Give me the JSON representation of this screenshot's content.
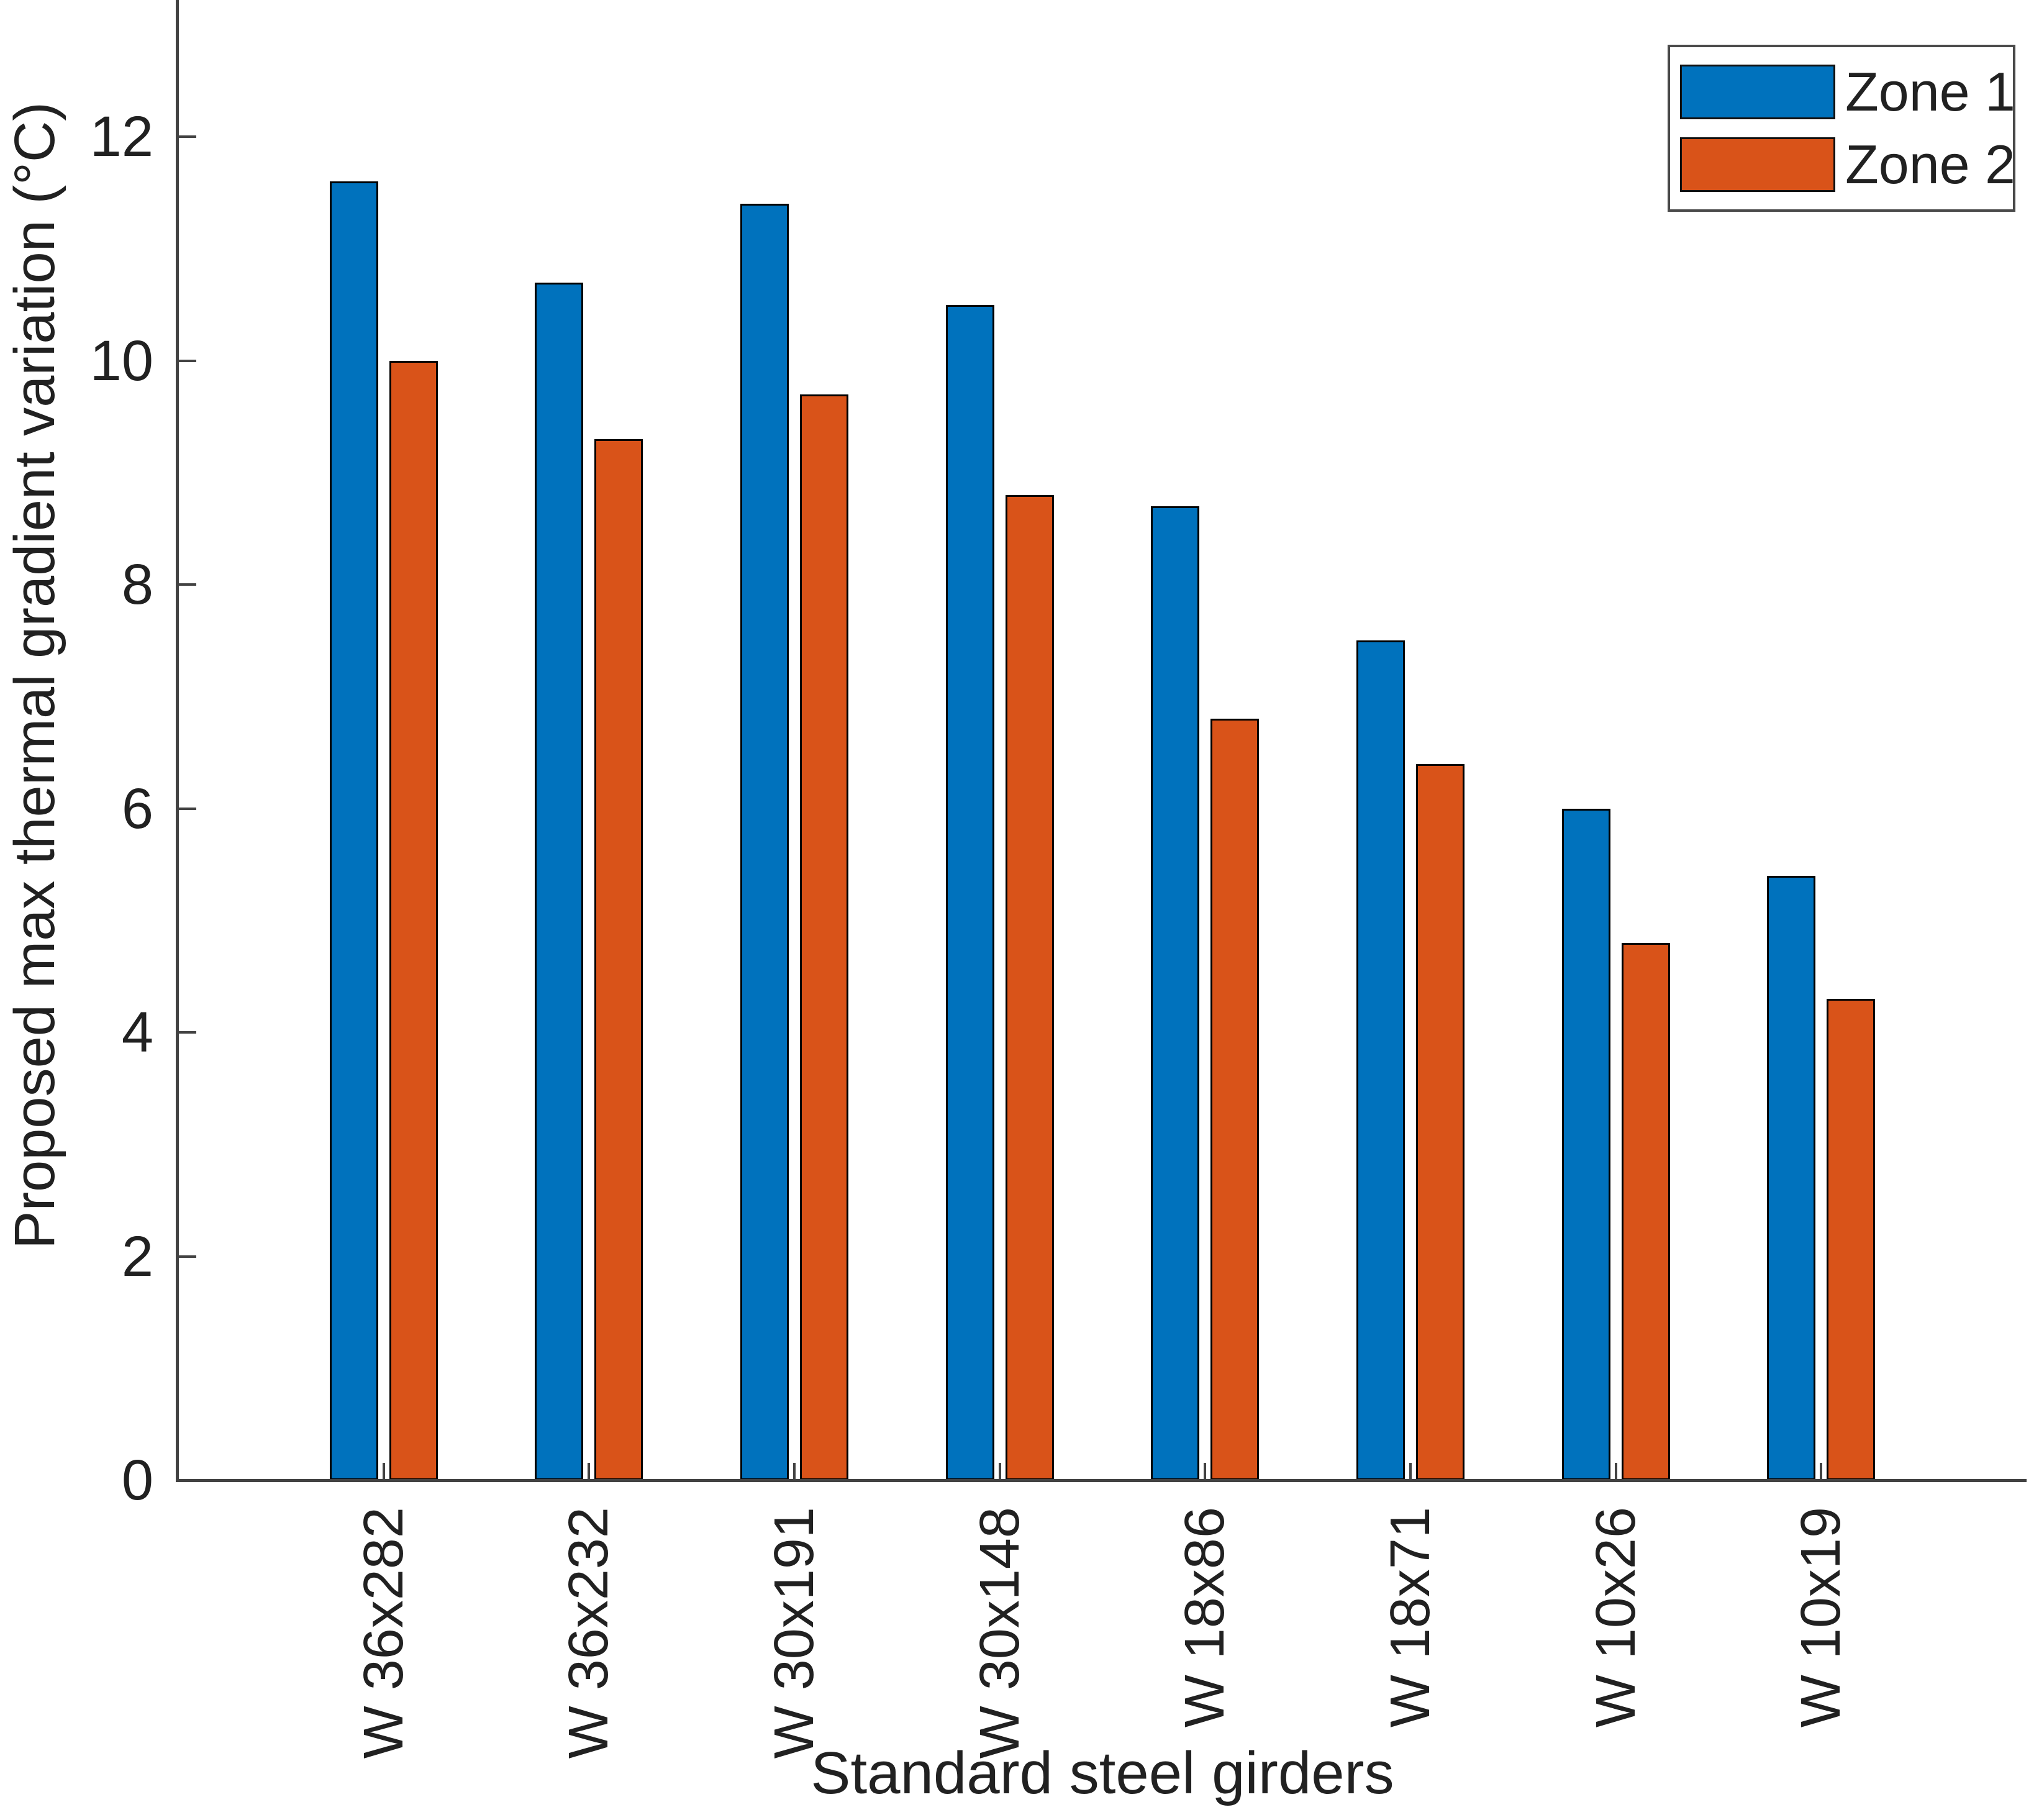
{
  "chart_data": {
    "type": "bar",
    "title": "",
    "xlabel": "Standard steel girders",
    "ylabel": "Proposed max thermal gradient variation (°C)",
    "categories": [
      "W 36x282",
      "W 36x232",
      "W 30x191",
      "W 30x148",
      "W 18x86",
      "W 18x71",
      "W 10x26",
      "W 10x19"
    ],
    "series": [
      {
        "name": "Zone 1",
        "color": "#0072BD",
        "values": [
          11.6,
          10.7,
          11.4,
          10.5,
          8.7,
          7.5,
          6.0,
          5.4
        ]
      },
      {
        "name": "Zone 2",
        "color": "#D95319",
        "values": [
          10.0,
          9.3,
          9.7,
          8.8,
          6.8,
          6.4,
          4.8,
          4.3
        ]
      }
    ],
    "ylim": [
      0,
      13
    ],
    "yticks": [
      0,
      2,
      4,
      6,
      8,
      10,
      12
    ],
    "xtick_rotation_deg": 90,
    "legend_position": "northeast",
    "grid": false,
    "bar_edge_color": "#000000",
    "axis_color": "#424242",
    "text_color": "#212121",
    "background": "#FFFFFF"
  }
}
